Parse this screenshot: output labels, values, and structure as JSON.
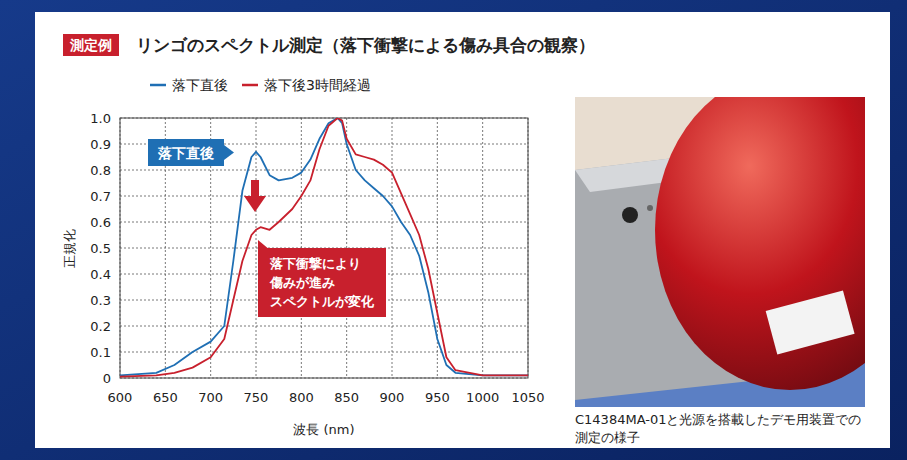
{
  "header": {
    "badge": "測定例"
  },
  "chart_data": {
    "type": "line",
    "title": "リンゴのスペクトル測定（落下衝撃による傷み具合の観察）",
    "x_label": "波長 (nm)",
    "y_label": "正規化",
    "x": [
      600,
      640,
      660,
      680,
      700,
      715,
      725,
      735,
      745,
      750,
      755,
      765,
      775,
      790,
      800,
      810,
      820,
      830,
      840,
      845,
      850,
      860,
      870,
      880,
      890,
      900,
      910,
      920,
      930,
      940,
      950,
      960,
      970,
      1000,
      1050
    ],
    "series": [
      {
        "name": "落下直後",
        "color": "#1f6fb4",
        "values": [
          0.01,
          0.02,
          0.05,
          0.1,
          0.14,
          0.2,
          0.45,
          0.72,
          0.85,
          0.87,
          0.85,
          0.78,
          0.76,
          0.77,
          0.79,
          0.84,
          0.92,
          0.98,
          1.0,
          0.98,
          0.9,
          0.8,
          0.76,
          0.73,
          0.7,
          0.66,
          0.6,
          0.55,
          0.47,
          0.33,
          0.15,
          0.05,
          0.02,
          0.01,
          0.01
        ]
      },
      {
        "name": "落下後3時間経過",
        "color": "#c8202d",
        "values": [
          0.005,
          0.01,
          0.02,
          0.04,
          0.08,
          0.15,
          0.3,
          0.45,
          0.55,
          0.57,
          0.58,
          0.57,
          0.6,
          0.65,
          0.7,
          0.76,
          0.88,
          0.97,
          1.0,
          0.99,
          0.92,
          0.86,
          0.85,
          0.84,
          0.82,
          0.79,
          0.71,
          0.63,
          0.55,
          0.42,
          0.25,
          0.08,
          0.03,
          0.01,
          0.01
        ]
      }
    ],
    "xlim": [
      600,
      1050
    ],
    "xticks": [
      600,
      650,
      700,
      750,
      800,
      850,
      900,
      950,
      1000,
      1050
    ],
    "ylim": [
      0,
      1
    ],
    "yticks": [
      0,
      0.1,
      0.2,
      0.3,
      0.4,
      0.5,
      0.6,
      0.7,
      0.8,
      0.9,
      {
        "value": 1,
        "label": "1.0"
      }
    ],
    "grid": true,
    "legend": "top",
    "annotations": [
      {
        "text": "落下直後",
        "color": "#1f6fb4"
      },
      {
        "lines": [
          "落下衝撃により",
          "傷みが進み",
          "スペクトルが変化"
        ],
        "color": "#c8202d"
      }
    ]
  },
  "photo": {
    "caption": "C14384MA-01と光源を搭載したデモ用装置での測定の様子"
  }
}
